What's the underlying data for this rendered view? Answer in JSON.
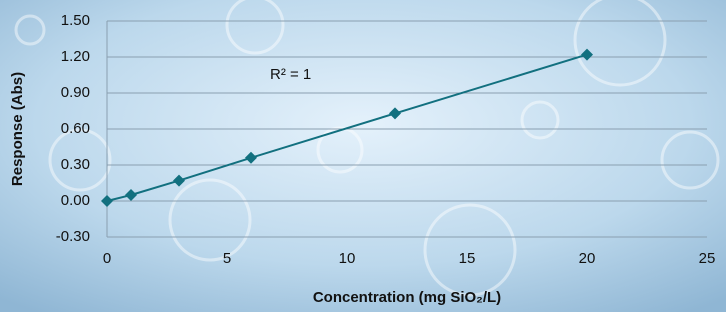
{
  "chart_data": {
    "type": "line",
    "x_label": "Concentration (mg SiO₂/L)",
    "y_label": "Response (Abs)",
    "annotation": "R² = 1",
    "x": [
      0,
      1,
      3,
      6,
      12,
      20
    ],
    "values": [
      0,
      0.05,
      0.17,
      0.36,
      0.73,
      1.22
    ],
    "color": "#12707f",
    "xlim": [
      0,
      25
    ],
    "xticks": [
      0,
      5,
      10,
      15,
      20,
      25
    ],
    "ylim": [
      -0.3,
      1.5
    ],
    "yticks": [
      {
        "value": -0.3,
        "label": "-0.30"
      },
      {
        "value": 0,
        "label": "0.00"
      },
      {
        "value": 0.3,
        "label": "0.30"
      },
      {
        "value": 0.6,
        "label": "0.60"
      },
      {
        "value": 0.9,
        "label": "0.90"
      },
      {
        "value": 1.2,
        "label": "1.20"
      },
      {
        "value": 1.5,
        "label": "1.50"
      }
    ],
    "grid": true
  }
}
